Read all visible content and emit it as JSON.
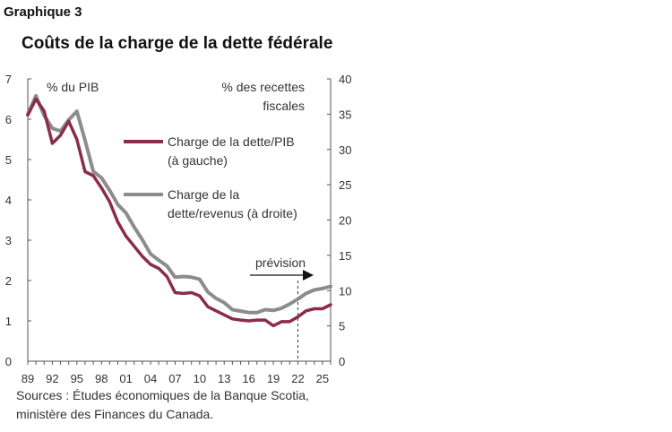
{
  "figure_label": "Graphique 3",
  "source": {
    "line1": "Sources : Études économiques de la Banque Scotia,",
    "line2": "ministère des Finances du Canada."
  },
  "colors": {
    "debt_gdp": "#8b2c4a",
    "debt_revenue": "#8c8c8c"
  },
  "chart_data": {
    "type": "line",
    "title": "Coûts de la charge de la dette fédérale",
    "left_axis_label": "% du PIB",
    "right_axis_label_line1": "% des recettes",
    "right_axis_label_line2": "fiscales",
    "ylim_left": [
      0,
      7
    ],
    "ylim_right": [
      0,
      40
    ],
    "yticks_left": [
      "0",
      "1",
      "2",
      "3",
      "4",
      "5",
      "6",
      "7"
    ],
    "yticks_right": [
      "0",
      "5",
      "10",
      "15",
      "20",
      "25",
      "30",
      "35",
      "40"
    ],
    "xticks": [
      "89",
      "92",
      "95",
      "98",
      "01",
      "04",
      "07",
      "10",
      "13",
      "16",
      "19",
      "22",
      "25"
    ],
    "xlim": [
      1989,
      2026
    ],
    "grid": false,
    "legend_position": "center",
    "forecast_label": "prévision",
    "forecast_start": 2022,
    "series": [
      {
        "name": "Charge de la dette/PIB (à gauche)",
        "legend_line1": "Charge de la dette/PIB",
        "legend_line2": "(à gauche)",
        "axis": "left",
        "x": [
          1989,
          1990,
          1991,
          1992,
          1993,
          1994,
          1995,
          1996,
          1997,
          1998,
          1999,
          2000,
          2001,
          2002,
          2003,
          2004,
          2005,
          2006,
          2007,
          2008,
          2009,
          2010,
          2011,
          2012,
          2013,
          2014,
          2015,
          2016,
          2017,
          2018,
          2019,
          2020,
          2021,
          2022,
          2023,
          2024,
          2025,
          2026
        ],
        "values": [
          6.1,
          6.5,
          6.2,
          5.4,
          5.6,
          5.95,
          5.5,
          4.7,
          4.6,
          4.3,
          3.95,
          3.45,
          3.1,
          2.85,
          2.6,
          2.4,
          2.3,
          2.1,
          1.7,
          1.68,
          1.7,
          1.62,
          1.35,
          1.25,
          1.15,
          1.05,
          1.02,
          1.0,
          1.02,
          1.02,
          0.88,
          0.98,
          0.98,
          1.1,
          1.25,
          1.3,
          1.3,
          1.4
        ]
      },
      {
        "name": "Charge de la dette/revenus (à droite)",
        "legend_line1": "Charge de la",
        "legend_line2": "dette/revenus (à droite)",
        "axis": "right",
        "x": [
          1989,
          1990,
          1991,
          1992,
          1993,
          1994,
          1995,
          1996,
          1997,
          1998,
          1999,
          2000,
          2001,
          2002,
          2003,
          2004,
          2005,
          2006,
          2007,
          2008,
          2009,
          2010,
          2011,
          2012,
          2013,
          2014,
          2015,
          2016,
          2017,
          2018,
          2019,
          2020,
          2021,
          2022,
          2023,
          2024,
          2025,
          2026
        ],
        "values": [
          35,
          37.6,
          34.8,
          33,
          32.6,
          34.2,
          35.4,
          31.3,
          26.9,
          26,
          24.2,
          22.2,
          21,
          19,
          17.2,
          15.2,
          14.3,
          13.5,
          11.9,
          12,
          11.9,
          11.6,
          9.8,
          8.9,
          8.3,
          7.3,
          7.1,
          6.9,
          6.9,
          7.3,
          7.2,
          7.5,
          8.1,
          8.8,
          9.6,
          10.1,
          10.3,
          10.6
        ]
      }
    ]
  }
}
